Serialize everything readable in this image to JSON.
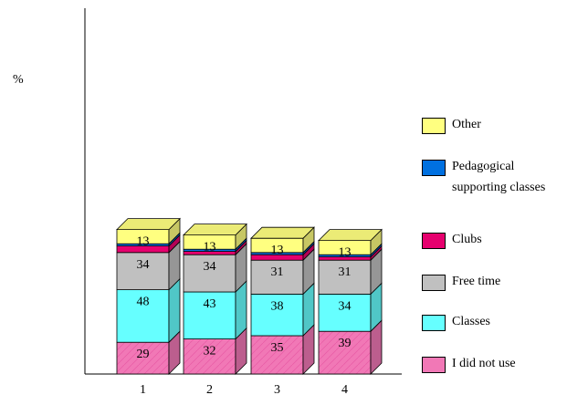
{
  "chart_data": {
    "type": "bar",
    "stacked": true,
    "three_d": true,
    "ylabel": "%",
    "categories": [
      "1",
      "2",
      "3",
      "4"
    ],
    "series": [
      {
        "name": "I did not use",
        "color": "#F178B6",
        "values": [
          29,
          32,
          35,
          39
        ],
        "labels": [
          "29",
          "32",
          "35",
          "39"
        ]
      },
      {
        "name": "Classes",
        "color": "#66FFFF",
        "values": [
          48,
          43,
          38,
          34
        ],
        "labels": [
          "48",
          "43",
          "38",
          "34"
        ]
      },
      {
        "name": "Free time",
        "color": "#C0C0C0",
        "values": [
          34,
          34,
          31,
          31
        ],
        "labels": [
          "34",
          "34",
          "31",
          "31"
        ]
      },
      {
        "name": "Clubs",
        "color": "#E6006E",
        "values": [
          6,
          3,
          5,
          3
        ],
        "labels": [
          "",
          "",
          "",
          ""
        ]
      },
      {
        "name": "Pedagogical supporting classes",
        "color": "#0070E0",
        "values": [
          2,
          2,
          2,
          2
        ],
        "labels": [
          "",
          "",
          "",
          ""
        ]
      },
      {
        "name": "Other",
        "color": "#FFFF80",
        "values": [
          13,
          13,
          13,
          13
        ],
        "labels": [
          "13",
          "13",
          "13",
          "13"
        ]
      }
    ],
    "legend": {
      "position": "right",
      "items": [
        {
          "key": "other",
          "label": "Other",
          "color": "#FFFF80"
        },
        {
          "key": "support",
          "label": "Pedagogical",
          "label2": "supporting classes",
          "color": "#0070E0"
        },
        {
          "key": "clubs",
          "label": "Clubs",
          "color": "#E6006E"
        },
        {
          "key": "free",
          "label": "Free time",
          "color": "#C0C0C0"
        },
        {
          "key": "classes",
          "label": "Classes",
          "color": "#66FFFF"
        },
        {
          "key": "none",
          "label": "I did not use",
          "color": "#F178B6"
        }
      ]
    },
    "grid": false
  }
}
